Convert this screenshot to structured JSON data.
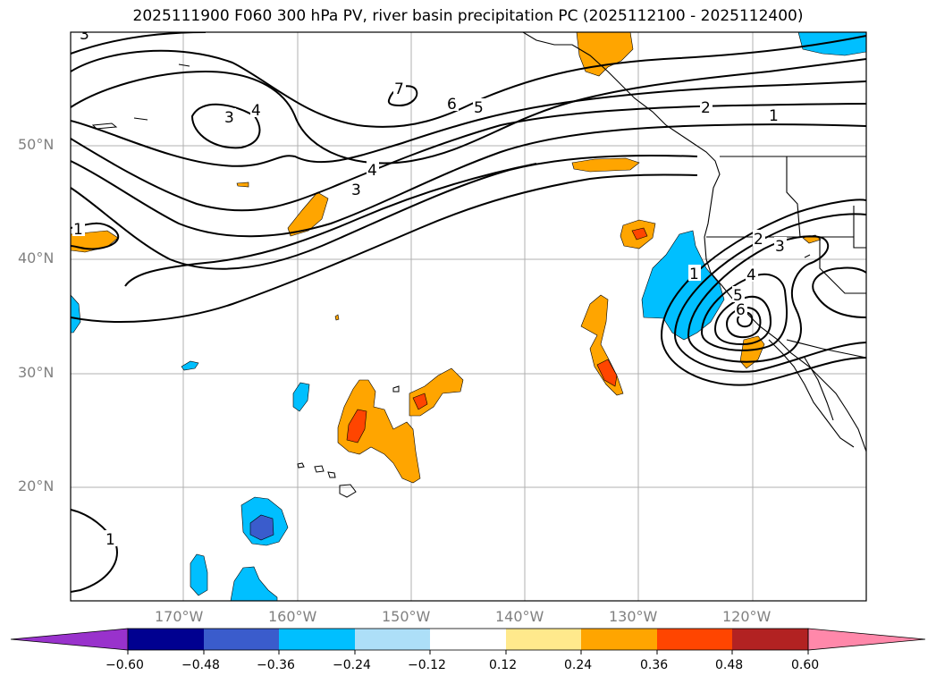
{
  "title": "2025111900 F060 300 hPa PV, river basin precipitation PC (2025112100 - 2025112400)",
  "lat_labels": [
    "50°N",
    "40°N",
    "30°N",
    "20°N"
  ],
  "lon_labels": [
    "170°W",
    "160°W",
    "150°W",
    "140°W",
    "130°W",
    "120°W"
  ],
  "contour_labels": [
    "7",
    "6",
    "5",
    "4",
    "3",
    "4",
    "3",
    "2",
    "1",
    "1",
    "2",
    "3",
    "4",
    "5",
    "6",
    "1",
    "1",
    "3"
  ],
  "colorbar": {
    "ticks": [
      "−0.60",
      "−0.48",
      "−0.36",
      "−0.24",
      "−0.12",
      "0.12",
      "0.24",
      "0.36",
      "0.48",
      "0.60"
    ],
    "colors": [
      "#9932cc",
      "#000090",
      "#3a5ccc",
      "#00bfff",
      "#addff8",
      "#ffffff",
      "#ffe98c",
      "#ffa500",
      "#ff4500",
      "#b22222",
      "#ff88aa",
      "#9a30d0"
    ]
  }
}
